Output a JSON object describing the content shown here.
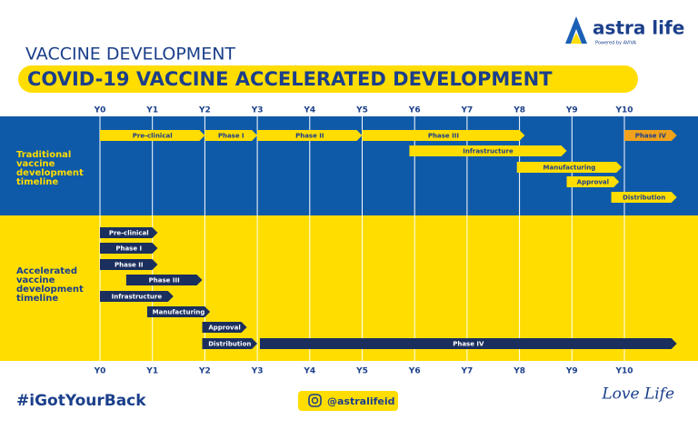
{
  "header": {
    "subtitle": "VACCINE DEVELOPMENT",
    "title": "COVID-19 VACCINE ACCELERATED DEVELOPMENT"
  },
  "logo": {
    "name": "astra life",
    "tagline": "Powered by AVIVA"
  },
  "years": [
    "Y0",
    "Y1",
    "Y2",
    "Y3",
    "Y4",
    "Y5",
    "Y6",
    "Y7",
    "Y8",
    "Y9",
    "Y10"
  ],
  "tracks": [
    {
      "label": [
        "Traditional",
        "vaccine",
        "development",
        "timeline"
      ],
      "bars": [
        {
          "label": "Pre-clinical",
          "start": 0,
          "end": 2
        },
        {
          "label": "Phase I",
          "start": 2,
          "end": 3
        },
        {
          "label": "Phase II",
          "start": 3,
          "end": 5
        },
        {
          "label": "Phase III",
          "start": 5,
          "end": 8.1
        },
        {
          "label": "Infrastructure",
          "start": 5.9,
          "end": 8.9
        },
        {
          "label": "Manufacturing",
          "start": 7.95,
          "end": 9.95
        },
        {
          "label": "Approval",
          "start": 8.9,
          "end": 9.9
        },
        {
          "label": "Distribution",
          "start": 9.75,
          "end": 11
        },
        {
          "label": "Phase IV",
          "start": 10,
          "end": 11
        }
      ]
    },
    {
      "label": [
        "Accelerated",
        "vaccine",
        "development",
        "timeline"
      ],
      "bars": [
        {
          "label": "Pre-clinical",
          "start": 0,
          "end": 1.1
        },
        {
          "label": "Phase I",
          "start": 0,
          "end": 1.1
        },
        {
          "label": "Phase II",
          "start": 0,
          "end": 1.1
        },
        {
          "label": "Phase III",
          "start": 0.5,
          "end": 1.95
        },
        {
          "label": "Infrastructure",
          "start": 0,
          "end": 1.4
        },
        {
          "label": "Manufacturing",
          "start": 0.9,
          "end": 2.1
        },
        {
          "label": "Approval",
          "start": 1.95,
          "end": 2.8
        },
        {
          "label": "Distribution",
          "start": 1.95,
          "end": 3
        },
        {
          "label": "Phase IV",
          "start": 3.05,
          "end": 11
        }
      ]
    }
  ],
  "footer": {
    "hashtag": "#iGotYourBack",
    "instagram": "@astralifeid",
    "slogan": "Love Life"
  }
}
